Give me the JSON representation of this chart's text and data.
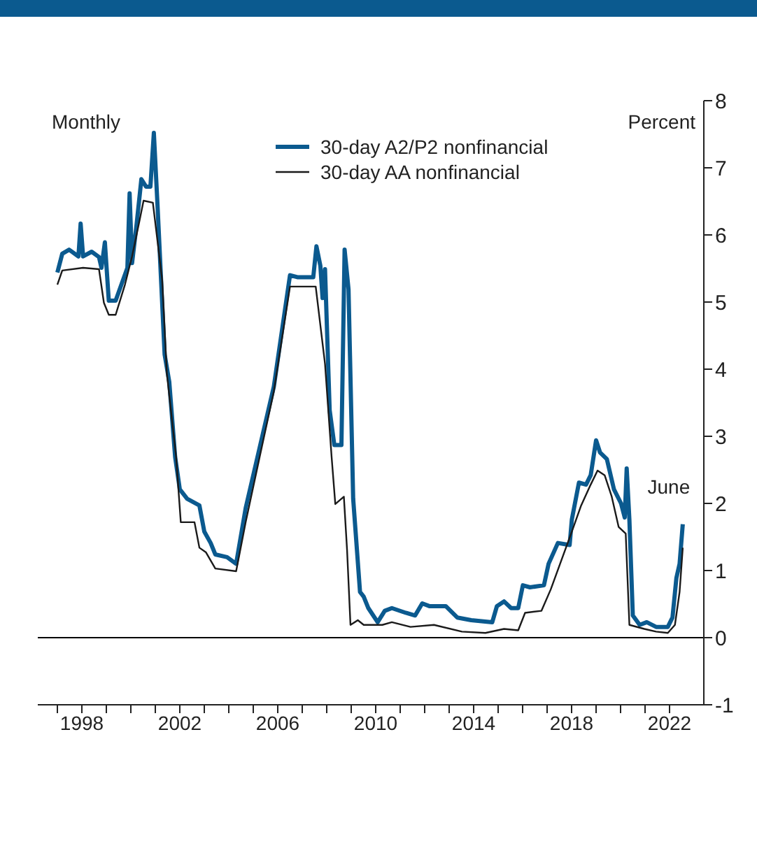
{
  "chart_data": {
    "type": "line",
    "ylabel": "Percent",
    "annotations": [
      "Monthly",
      {
        "text": "June",
        "x": 2022.54,
        "y": 1.69
      }
    ],
    "xlim": [
      1996.2,
      2023.4
    ],
    "xticks": [
      {
        "value": 1997,
        "label": null
      },
      {
        "value": 1998,
        "label": "1998"
      },
      {
        "value": 1999,
        "label": null
      },
      {
        "value": 2000,
        "label": null
      },
      {
        "value": 2001,
        "label": null
      },
      {
        "value": 2002,
        "label": "2002"
      },
      {
        "value": 2003,
        "label": null
      },
      {
        "value": 2004,
        "label": null
      },
      {
        "value": 2005,
        "label": null
      },
      {
        "value": 2006,
        "label": "2006"
      },
      {
        "value": 2007,
        "label": null
      },
      {
        "value": 2008,
        "label": null
      },
      {
        "value": 2009,
        "label": null
      },
      {
        "value": 2010,
        "label": "2010"
      },
      {
        "value": 2011,
        "label": null
      },
      {
        "value": 2012,
        "label": null
      },
      {
        "value": 2013,
        "label": null
      },
      {
        "value": 2014,
        "label": "2014"
      },
      {
        "value": 2015,
        "label": null
      },
      {
        "value": 2016,
        "label": null
      },
      {
        "value": 2017,
        "label": null
      },
      {
        "value": 2018,
        "label": "2018"
      },
      {
        "value": 2019,
        "label": null
      },
      {
        "value": 2020,
        "label": null
      },
      {
        "value": 2021,
        "label": null
      },
      {
        "value": 2022,
        "label": "2022"
      }
    ],
    "ylim": [
      -1,
      8
    ],
    "yticks": [
      -1,
      0,
      1,
      2,
      3,
      4,
      5,
      6,
      7,
      8
    ],
    "ref_lines": [
      {
        "axis": "y",
        "value": 0,
        "color": "#000000"
      }
    ],
    "legend": "top",
    "marker": "none",
    "line_style": "solid",
    "series": [
      {
        "name": "30-day A2/P2 nonfinancial",
        "color": "#0b5a8f",
        "x": [
          1997.0,
          1997.2,
          1997.48,
          1997.86,
          1997.95,
          1998.05,
          1998.4,
          1998.7,
          1998.8,
          1998.94,
          1999.1,
          1999.38,
          1999.86,
          1999.95,
          2000.05,
          2000.24,
          2000.43,
          2000.62,
          2000.8,
          2000.94,
          2001.09,
          2001.38,
          2001.57,
          2001.81,
          2002.0,
          2002.3,
          2002.8,
          2003.0,
          2003.26,
          2003.45,
          2003.93,
          2004.3,
          2004.69,
          2005.26,
          2005.84,
          2006.5,
          2006.8,
          2007.45,
          2007.58,
          2007.74,
          2007.83,
          2007.93,
          2008.12,
          2008.31,
          2008.6,
          2008.73,
          2008.89,
          2009.08,
          2009.36,
          2009.51,
          2009.7,
          2010.08,
          2010.37,
          2010.66,
          2011.23,
          2011.61,
          2011.9,
          2012.19,
          2012.86,
          2013.33,
          2013.9,
          2014.76,
          2014.95,
          2015.24,
          2015.53,
          2015.82,
          2016.01,
          2016.3,
          2016.87,
          2017.06,
          2017.44,
          2017.92,
          2018.01,
          2018.3,
          2018.59,
          2018.78,
          2019.0,
          2019.16,
          2019.44,
          2019.73,
          2020.02,
          2020.17,
          2020.25,
          2020.36,
          2020.5,
          2020.78,
          2021.07,
          2021.45,
          2021.93,
          2022.12,
          2022.28,
          2022.41,
          2022.54
        ],
        "values": [
          5.44,
          5.72,
          5.78,
          5.68,
          6.17,
          5.68,
          5.75,
          5.67,
          5.51,
          5.89,
          5.02,
          5.02,
          5.51,
          6.62,
          5.58,
          6.17,
          6.83,
          6.72,
          6.72,
          7.52,
          6.44,
          4.22,
          3.81,
          2.69,
          2.21,
          2.07,
          1.97,
          1.58,
          1.41,
          1.24,
          1.2,
          1.1,
          1.93,
          2.83,
          3.74,
          5.4,
          5.37,
          5.37,
          5.83,
          5.54,
          5.06,
          5.49,
          3.39,
          2.87,
          2.87,
          5.78,
          5.19,
          2.07,
          0.68,
          0.61,
          0.44,
          0.23,
          0.4,
          0.44,
          0.37,
          0.33,
          0.51,
          0.47,
          0.47,
          0.3,
          0.26,
          0.23,
          0.47,
          0.54,
          0.44,
          0.44,
          0.78,
          0.75,
          0.78,
          1.1,
          1.41,
          1.38,
          1.76,
          2.31,
          2.28,
          2.42,
          2.94,
          2.76,
          2.66,
          2.21,
          2.0,
          1.79,
          2.52,
          1.76,
          0.33,
          0.19,
          0.23,
          0.16,
          0.16,
          0.3,
          0.89,
          1.1,
          1.69
        ]
      },
      {
        "name": "30-day AA nonfinancial",
        "color": "#1a1a1a",
        "x": [
          1997.0,
          1997.2,
          1998.05,
          1998.7,
          1998.9,
          1999.1,
          1999.38,
          1999.76,
          2000.05,
          2000.33,
          2000.52,
          2000.9,
          2001.28,
          2001.47,
          2001.85,
          2002.04,
          2002.6,
          2002.8,
          2003.07,
          2003.45,
          2004.3,
          2004.69,
          2005.26,
          2005.84,
          2006.5,
          2007.55,
          2007.93,
          2008.2,
          2008.35,
          2008.7,
          2008.83,
          2008.97,
          2009.27,
          2009.51,
          2010.27,
          2010.66,
          2011.42,
          2012.38,
          2013.52,
          2014.48,
          2015.24,
          2015.82,
          2016.1,
          2016.77,
          2017.15,
          2017.53,
          2018.01,
          2018.39,
          2018.78,
          2019.06,
          2019.35,
          2019.64,
          2019.92,
          2020.21,
          2020.36,
          2020.97,
          2021.45,
          2021.93,
          2022.22,
          2022.41,
          2022.54
        ],
        "values": [
          5.26,
          5.47,
          5.51,
          5.49,
          4.99,
          4.81,
          4.81,
          5.26,
          5.68,
          6.17,
          6.51,
          6.48,
          5.33,
          3.94,
          2.69,
          1.72,
          1.72,
          1.34,
          1.27,
          1.03,
          0.99,
          1.72,
          2.69,
          3.67,
          5.23,
          5.23,
          4.08,
          2.69,
          1.99,
          2.1,
          1.31,
          0.19,
          0.26,
          0.19,
          0.19,
          0.23,
          0.16,
          0.19,
          0.09,
          0.07,
          0.13,
          0.11,
          0.37,
          0.4,
          0.72,
          1.1,
          1.58,
          1.97,
          2.28,
          2.49,
          2.42,
          2.1,
          1.65,
          1.55,
          0.19,
          0.13,
          0.09,
          0.07,
          0.19,
          0.68,
          1.34
        ]
      }
    ]
  }
}
